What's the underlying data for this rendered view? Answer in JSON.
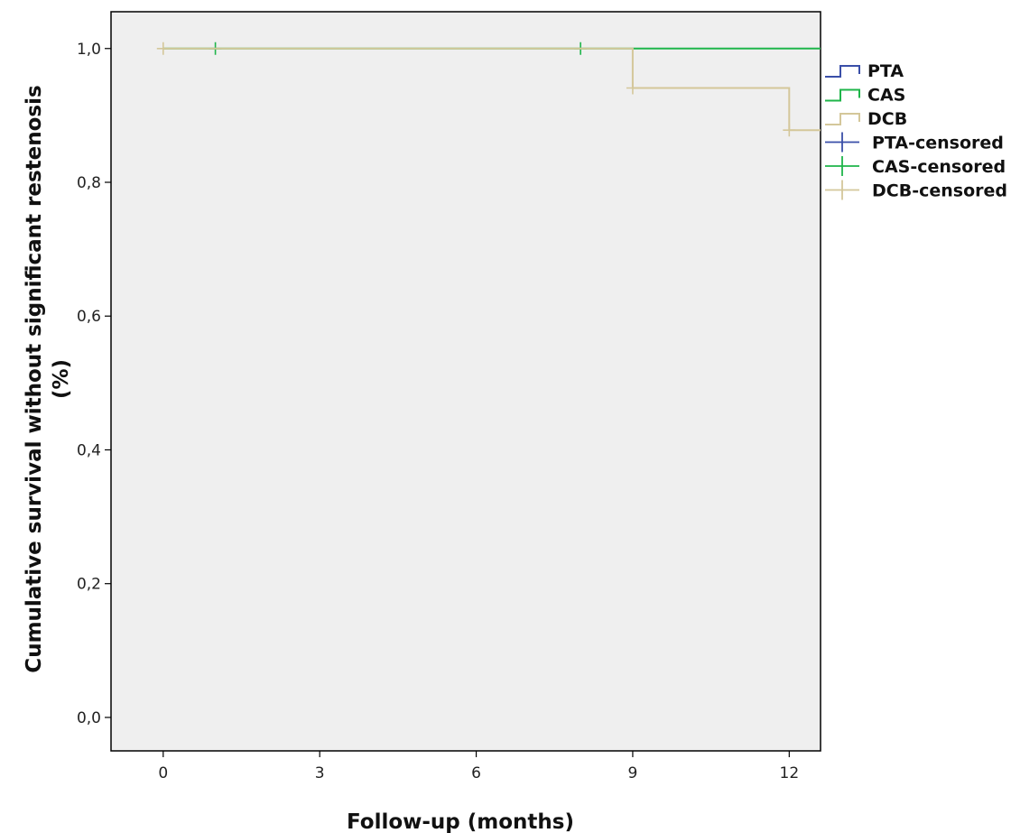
{
  "chart_data": {
    "type": "line",
    "subtype": "kaplan-meier",
    "title": "",
    "xlabel": "Follow-up (months)",
    "ylabel_lines": [
      "Cumulative survival without significant restenosis",
      "(%)"
    ],
    "xlim": [
      -1,
      12.6
    ],
    "ylim": [
      -0.05,
      1.055
    ],
    "xticks": [
      0,
      3,
      6,
      9,
      12
    ],
    "xtick_labels": [
      "0",
      "3",
      "6",
      "9",
      "12"
    ],
    "yticks": [
      0.0,
      0.2,
      0.4,
      0.6,
      0.8,
      1.0
    ],
    "ytick_labels": [
      "0,0",
      "0,2",
      "0,4",
      "0,6",
      "0,8",
      "1,0"
    ],
    "grid": false,
    "plot_background": "#efefef",
    "legend_position": "right",
    "series": [
      {
        "name": "PTA",
        "color": "#3a4fa8",
        "steps": [],
        "censored": []
      },
      {
        "name": "CAS",
        "color": "#1fb54a",
        "steps": [
          [
            0,
            1.0
          ],
          [
            12.6,
            1.0
          ]
        ],
        "censored": [
          [
            1,
            1.0
          ],
          [
            8,
            1.0
          ]
        ]
      },
      {
        "name": "DCB",
        "color": "#d4c79a",
        "steps": [
          [
            0,
            1.0
          ],
          [
            9,
            1.0
          ],
          [
            9,
            0.941
          ],
          [
            12,
            0.941
          ],
          [
            12,
            0.878
          ],
          [
            12.6,
            0.878
          ]
        ],
        "censored": [
          [
            0,
            1.0
          ],
          [
            9,
            0.941
          ],
          [
            12,
            0.878
          ]
        ]
      }
    ],
    "legend": [
      {
        "label": "PTA",
        "marker": "step",
        "color": "#3a4fa8"
      },
      {
        "label": "CAS",
        "marker": "step",
        "color": "#1fb54a"
      },
      {
        "label": "DCB",
        "marker": "step",
        "color": "#d4c79a"
      },
      {
        "label": "PTA-censored",
        "marker": "cross",
        "color": "#3a4fa8"
      },
      {
        "label": "CAS-censored",
        "marker": "cross",
        "color": "#1fb54a"
      },
      {
        "label": "DCB-censored",
        "marker": "cross",
        "color": "#d4c79a"
      }
    ]
  }
}
